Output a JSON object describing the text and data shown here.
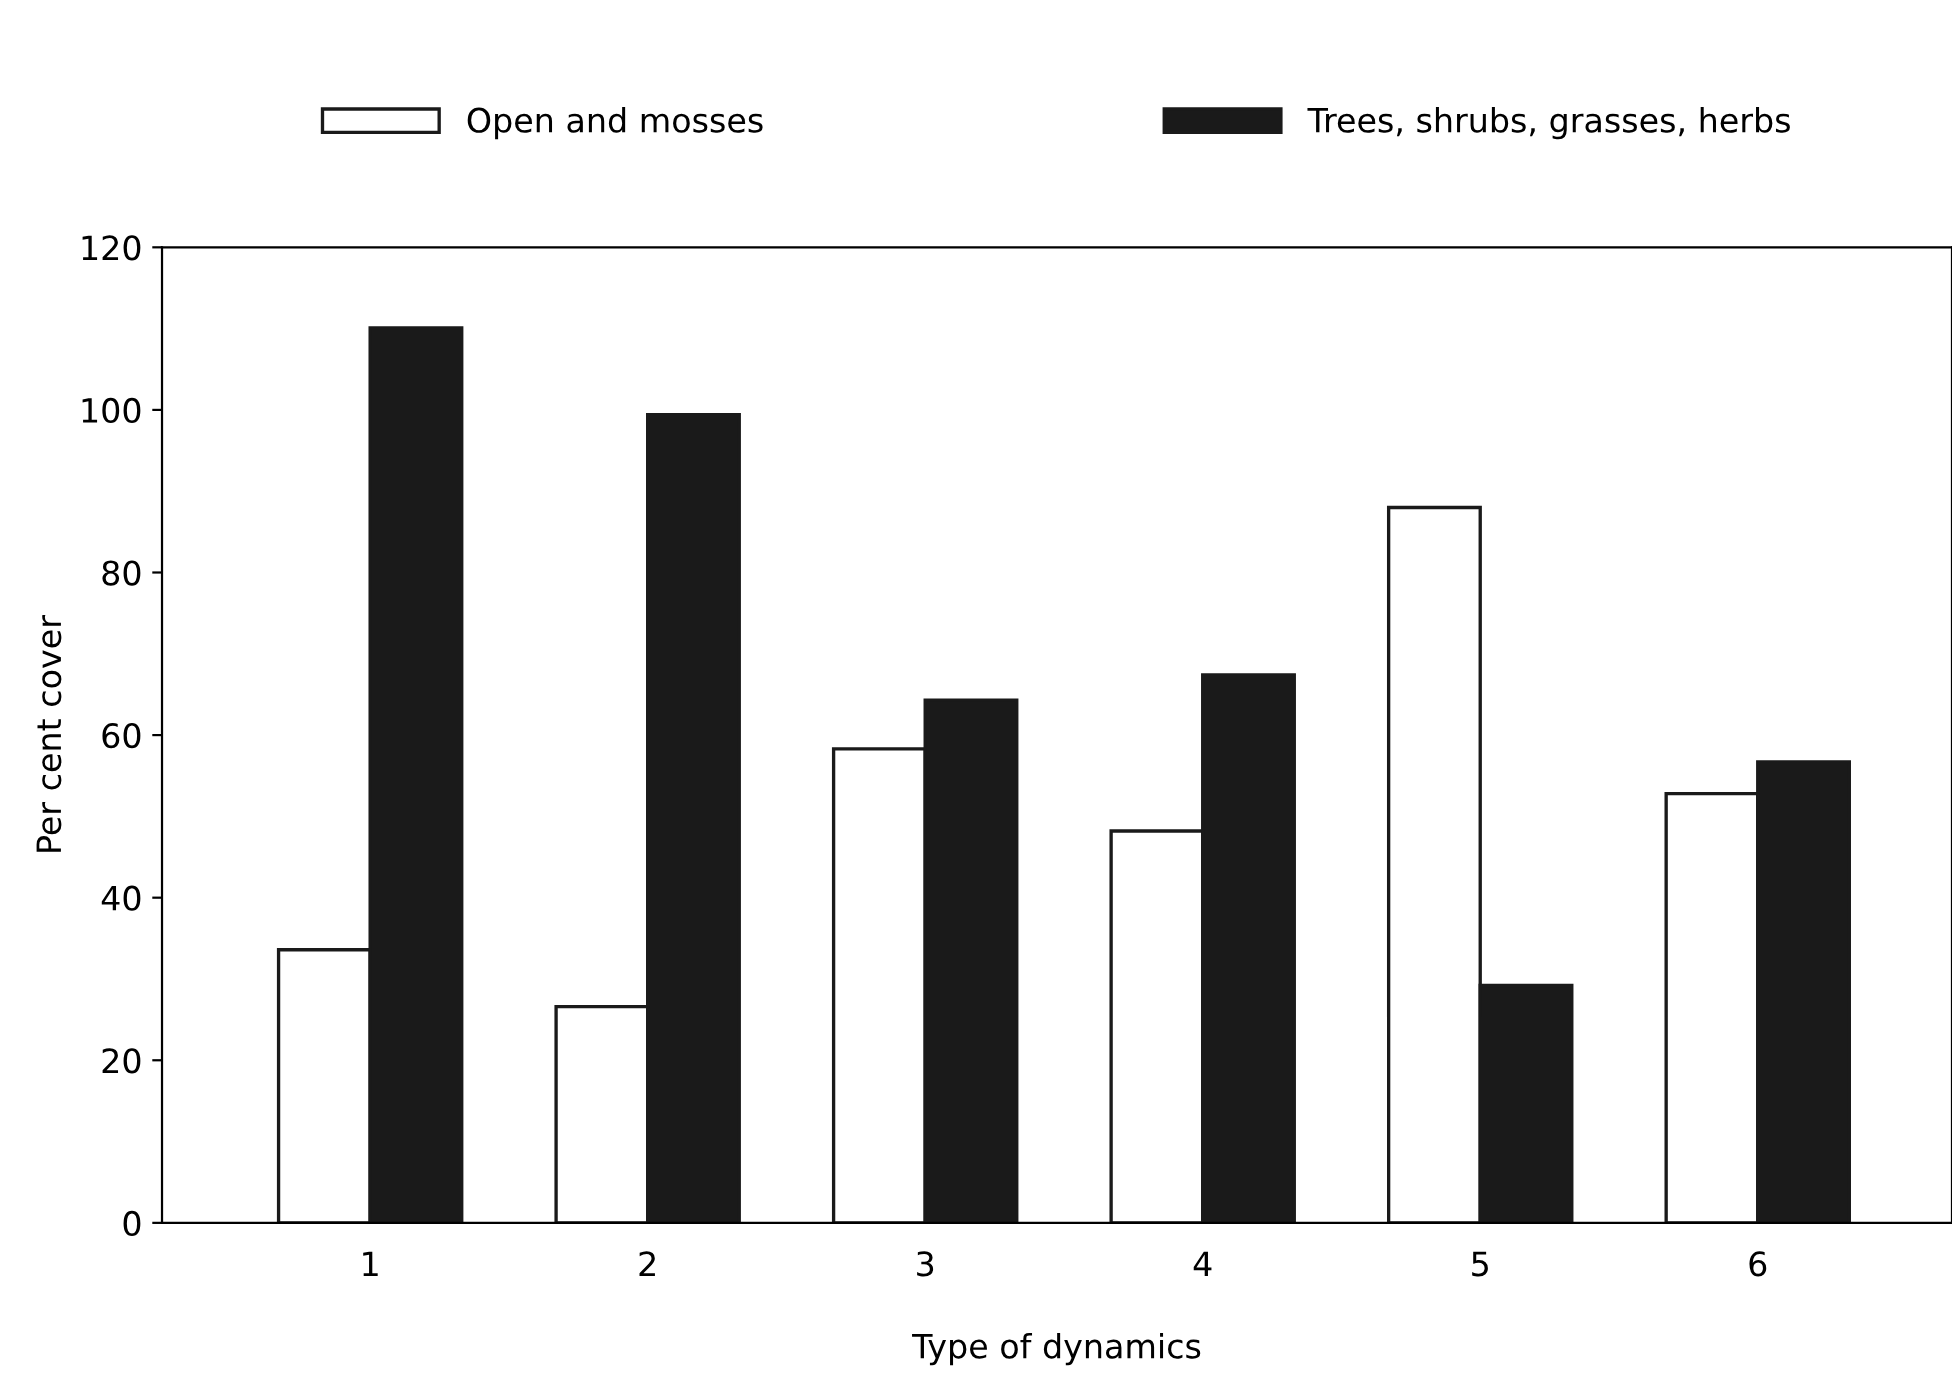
{
  "chart_data": {
    "type": "bar",
    "xlabel": "Type of dynamics",
    "ylabel": "Per cent cover",
    "categories": [
      "1",
      "2",
      "3",
      "4",
      "5",
      "6"
    ],
    "series": [
      {
        "name": "Open and mosses",
        "color": "#ffffff",
        "values": [
          33.6,
          26.6,
          58.3,
          48.2,
          88.0,
          52.8
        ]
      },
      {
        "name": "Trees, shrubs, grasses, herbs",
        "color": "#1a1a1a",
        "values": [
          110.1,
          99.4,
          64.3,
          67.4,
          29.2,
          56.7
        ]
      }
    ],
    "ylim": [
      0,
      120
    ],
    "yticks": [
      0,
      20,
      40,
      60,
      80,
      100,
      120
    ],
    "grid": false,
    "legend": "top"
  }
}
